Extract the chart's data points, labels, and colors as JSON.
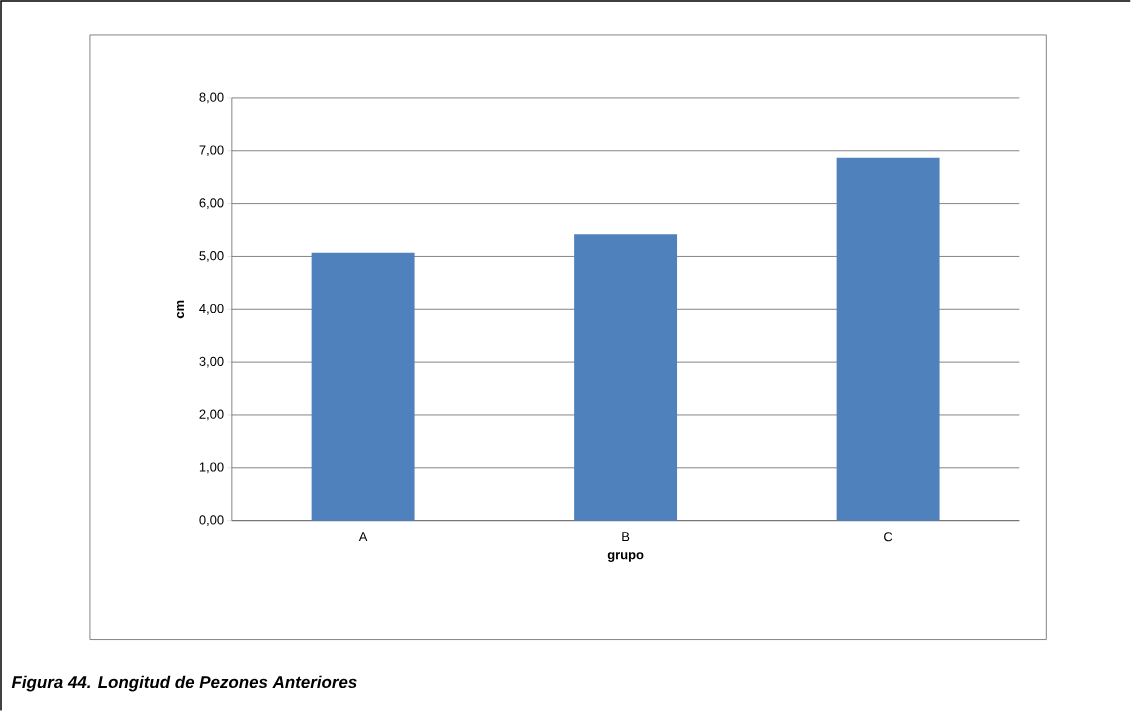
{
  "chart_data": {
    "type": "bar",
    "categories": [
      "A",
      "B",
      "C"
    ],
    "values": [
      5.07,
      5.42,
      6.87
    ],
    "color": "#4f81bd",
    "xlabel": "grupo",
    "ylabel": "cm",
    "ylim": [
      0,
      8
    ],
    "yticks": [
      {
        "value": 0,
        "label": "0,00"
      },
      {
        "value": 1,
        "label": "1,00"
      },
      {
        "value": 2,
        "label": "2,00"
      },
      {
        "value": 3,
        "label": "3,00"
      },
      {
        "value": 4,
        "label": "4,00"
      },
      {
        "value": 5,
        "label": "5,00"
      },
      {
        "value": 6,
        "label": "6,00"
      },
      {
        "value": 7,
        "label": "7,00"
      },
      {
        "value": 8,
        "label": "8,00"
      }
    ],
    "grid": "y",
    "annotations": [
      "Figura  44. Longitud de Pezones Anteriores"
    ]
  }
}
